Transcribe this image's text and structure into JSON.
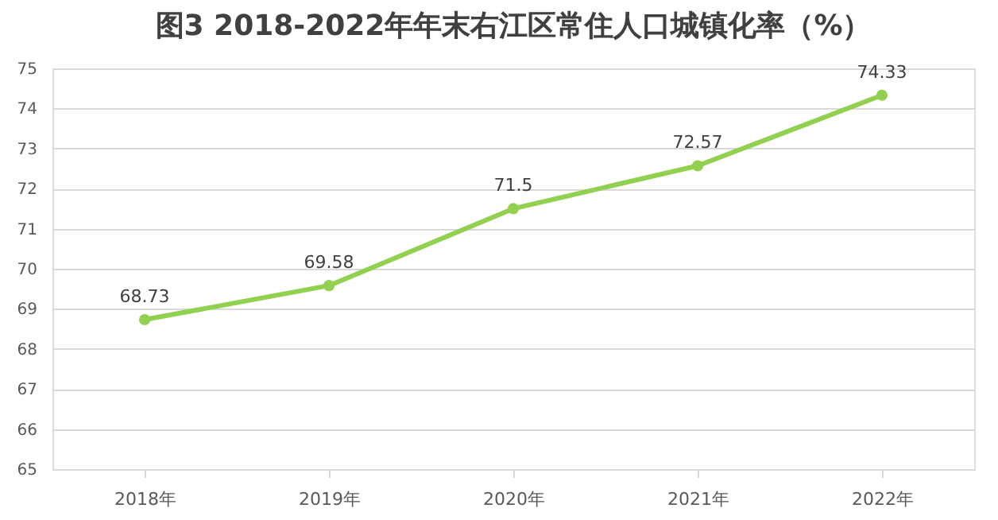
{
  "chart_data": {
    "type": "line",
    "title": "图3  2018-2022年年末右江区常住人口城镇化率（%）",
    "categories": [
      "2018年",
      "2019年",
      "2020年",
      "2021年",
      "2022年"
    ],
    "series": [
      {
        "color": "#92d050",
        "values": [
          68.73,
          69.58,
          71.5,
          72.57,
          74.33
        ]
      }
    ],
    "ylim": [
      65,
      75
    ],
    "yticks": [
      65,
      66,
      67,
      68,
      69,
      70,
      71,
      72,
      73,
      74,
      75
    ],
    "grid": "y",
    "marker": "circle",
    "line_style": "solid",
    "data_labels": true
  }
}
